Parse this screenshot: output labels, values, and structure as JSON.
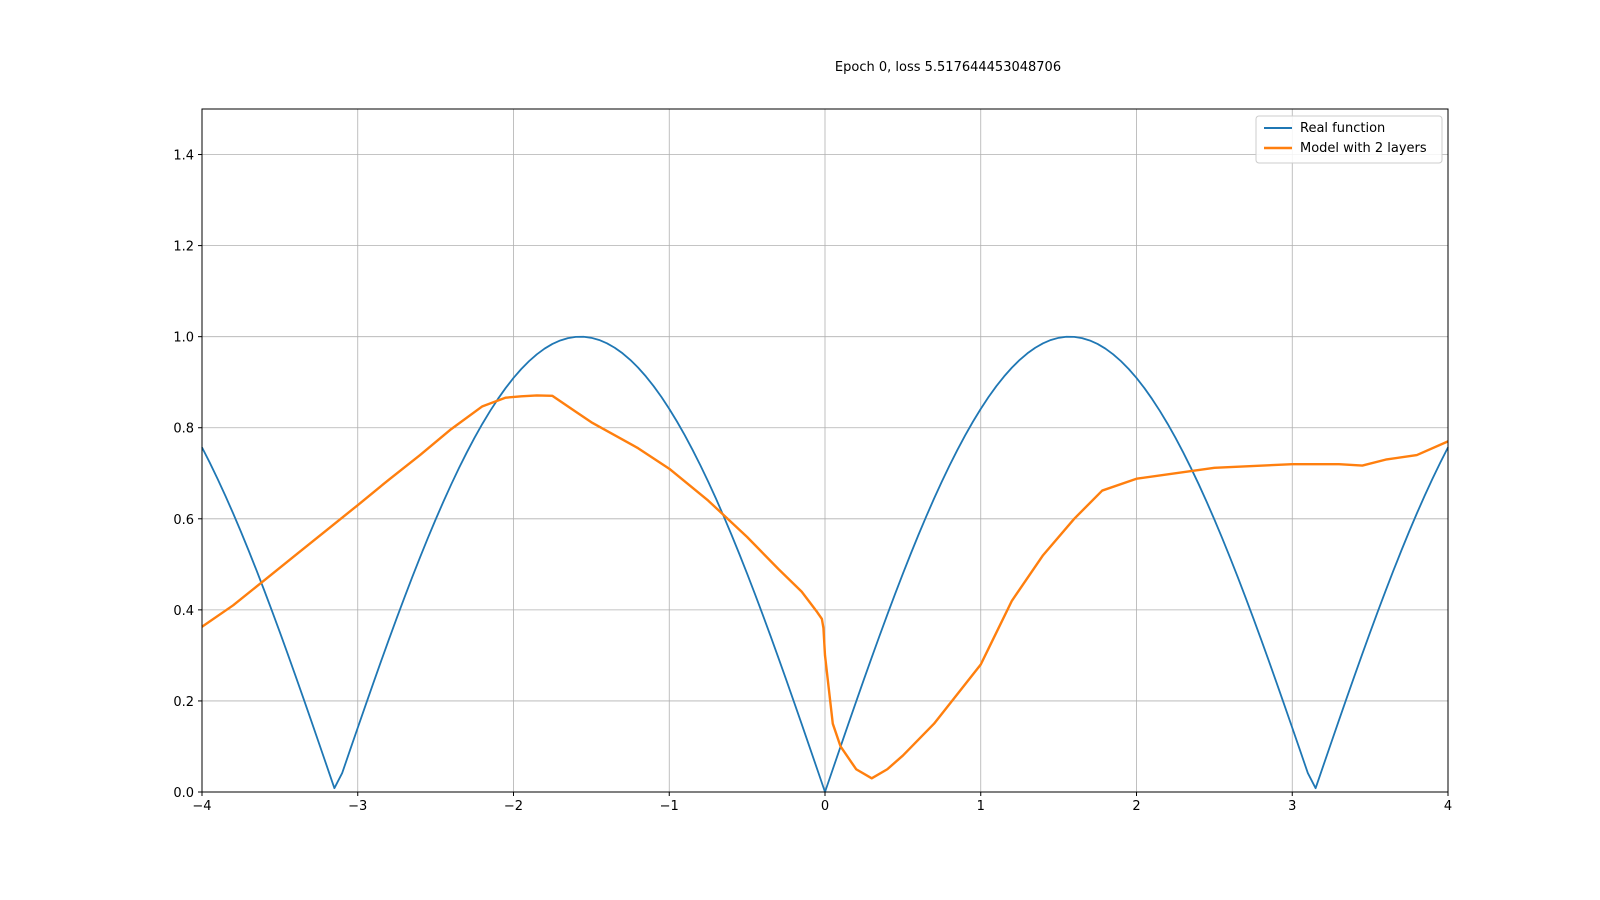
{
  "chart_data": {
    "type": "line",
    "title": "Epoch 0, loss 5.517644453048706",
    "xlabel": "",
    "ylabel": "",
    "xlim": [
      -4,
      4
    ],
    "ylim": [
      0,
      1.5
    ],
    "xticks": [
      -4,
      -3,
      -2,
      -1,
      0,
      1,
      2,
      3,
      4
    ],
    "xtick_labels": [
      "−4",
      "−3",
      "−2",
      "−1",
      "0",
      "1",
      "2",
      "3",
      "4"
    ],
    "yticks": [
      0.0,
      0.2,
      0.4,
      0.6,
      0.8,
      1.0,
      1.2,
      1.4
    ],
    "ytick_labels": [
      "0.0",
      "0.2",
      "0.4",
      "0.6",
      "0.8",
      "1.0",
      "1.2",
      "1.4"
    ],
    "grid": true,
    "legend_position": "top-right",
    "series": [
      {
        "name": "Real function",
        "color": "#1f77b4",
        "function": "abs(sin(x))",
        "x_range": [
          -4,
          4
        ],
        "samples": 161
      },
      {
        "name": "Model with 2 layers",
        "color": "#ff7f0e",
        "x": [
          -4.0,
          -3.8,
          -3.6,
          -3.4,
          -3.2,
          -3.0,
          -2.8,
          -2.6,
          -2.4,
          -2.2,
          -2.05,
          -1.95,
          -1.85,
          -1.75,
          -1.6,
          -1.5,
          -1.2,
          -1.0,
          -0.75,
          -0.5,
          -0.3,
          -0.15,
          -0.05,
          -0.02,
          -0.01,
          0.0,
          0.05,
          0.1,
          0.2,
          0.3,
          0.4,
          0.5,
          0.7,
          1.0,
          1.2,
          1.4,
          1.6,
          1.78,
          2.0,
          2.5,
          3.0,
          3.3,
          3.45,
          3.6,
          3.8,
          4.0
        ],
        "values": [
          0.363,
          0.41,
          0.465,
          0.52,
          0.575,
          0.63,
          0.686,
          0.74,
          0.797,
          0.847,
          0.866,
          0.869,
          0.871,
          0.87,
          0.835,
          0.812,
          0.755,
          0.71,
          0.64,
          0.56,
          0.49,
          0.44,
          0.395,
          0.38,
          0.36,
          0.3,
          0.15,
          0.1,
          0.05,
          0.03,
          0.05,
          0.08,
          0.15,
          0.28,
          0.42,
          0.52,
          0.6,
          0.662,
          0.688,
          0.712,
          0.72,
          0.72,
          0.717,
          0.73,
          0.74,
          0.77
        ]
      }
    ]
  }
}
